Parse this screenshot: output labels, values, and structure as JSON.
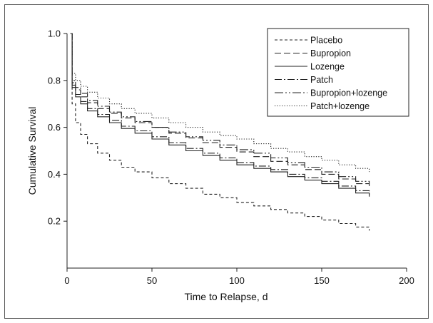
{
  "chart_data": {
    "type": "line",
    "xlabel": "Time to Relapse, d",
    "ylabel": "Cumulative Survival",
    "xlim": [
      0,
      200
    ],
    "ylim": [
      0,
      1.0
    ],
    "xticks": [
      "0",
      "50",
      "100",
      "150",
      "200"
    ],
    "yticks": [
      "0.2",
      "0.4",
      "0.6",
      "0.8",
      "1.0"
    ],
    "grid": false,
    "legend_position": "top-right",
    "series": [
      {
        "name": "Placebo",
        "color": "#222222",
        "dash": "4,3",
        "x": [
          2,
          3,
          5,
          8,
          12,
          18,
          25,
          32,
          40,
          50,
          60,
          70,
          80,
          90,
          100,
          110,
          120,
          130,
          140,
          150,
          160,
          170,
          178
        ],
        "y": [
          1.0,
          0.7,
          0.62,
          0.57,
          0.53,
          0.49,
          0.46,
          0.43,
          0.41,
          0.385,
          0.36,
          0.34,
          0.315,
          0.3,
          0.28,
          0.265,
          0.25,
          0.235,
          0.22,
          0.205,
          0.19,
          0.175,
          0.16
        ]
      },
      {
        "name": "Bupropion",
        "color": "#222222",
        "dash": "9,4",
        "x": [
          2,
          3,
          5,
          8,
          12,
          18,
          25,
          32,
          40,
          50,
          60,
          70,
          80,
          90,
          100,
          110,
          120,
          130,
          140,
          150,
          160,
          170,
          178
        ],
        "y": [
          1.0,
          0.79,
          0.76,
          0.73,
          0.705,
          0.68,
          0.66,
          0.64,
          0.62,
          0.6,
          0.575,
          0.555,
          0.535,
          0.515,
          0.495,
          0.475,
          0.455,
          0.44,
          0.42,
          0.4,
          0.38,
          0.36,
          0.35
        ]
      },
      {
        "name": "Lozenge",
        "color": "#222222",
        "dash": "",
        "x": [
          2,
          3,
          5,
          8,
          12,
          18,
          25,
          32,
          40,
          50,
          60,
          70,
          80,
          90,
          100,
          110,
          120,
          130,
          140,
          150,
          160,
          170,
          178
        ],
        "y": [
          1.0,
          0.77,
          0.73,
          0.7,
          0.67,
          0.645,
          0.62,
          0.595,
          0.575,
          0.55,
          0.525,
          0.5,
          0.48,
          0.46,
          0.44,
          0.425,
          0.41,
          0.39,
          0.375,
          0.36,
          0.34,
          0.32,
          0.305
        ]
      },
      {
        "name": "Patch",
        "color": "#222222",
        "dash": "10,3,2,3",
        "x": [
          2,
          3,
          5,
          8,
          12,
          18,
          25,
          32,
          40,
          50,
          60,
          70,
          80,
          90,
          100,
          110,
          120,
          130,
          140,
          150,
          160,
          170,
          178
        ],
        "y": [
          1.0,
          0.78,
          0.74,
          0.71,
          0.68,
          0.655,
          0.63,
          0.605,
          0.585,
          0.56,
          0.535,
          0.51,
          0.49,
          0.47,
          0.45,
          0.435,
          0.42,
          0.4,
          0.385,
          0.37,
          0.35,
          0.33,
          0.31
        ]
      },
      {
        "name": "Bupropion+lozenge",
        "color": "#222222",
        "dash": "12,3,2,3,2,3",
        "x": [
          2,
          3,
          5,
          8,
          12,
          18,
          25,
          32,
          40,
          50,
          60,
          70,
          80,
          90,
          100,
          110,
          120,
          130,
          140,
          150,
          160,
          170,
          178
        ],
        "y": [
          1.0,
          0.8,
          0.77,
          0.745,
          0.715,
          0.69,
          0.665,
          0.645,
          0.625,
          0.6,
          0.58,
          0.56,
          0.545,
          0.525,
          0.505,
          0.49,
          0.47,
          0.45,
          0.43,
          0.41,
          0.39,
          0.37,
          0.36
        ]
      },
      {
        "name": "Patch+lozenge",
        "color": "#222222",
        "dash": "1.2,2.2",
        "x": [
          2,
          3,
          5,
          8,
          12,
          18,
          25,
          32,
          40,
          50,
          60,
          70,
          80,
          90,
          100,
          110,
          120,
          130,
          140,
          150,
          160,
          170,
          178
        ],
        "y": [
          1.0,
          0.83,
          0.8,
          0.775,
          0.75,
          0.725,
          0.7,
          0.68,
          0.66,
          0.64,
          0.62,
          0.6,
          0.58,
          0.565,
          0.55,
          0.53,
          0.51,
          0.495,
          0.475,
          0.46,
          0.44,
          0.425,
          0.41
        ]
      }
    ]
  }
}
